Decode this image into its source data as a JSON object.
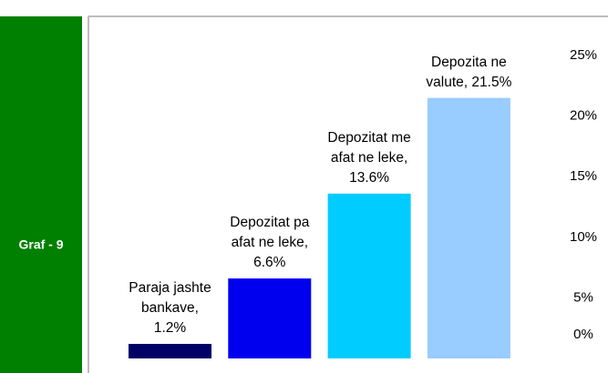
{
  "side_label": "Graf - 9",
  "chart_data": {
    "type": "bar",
    "values": [
      1.2,
      6.6,
      13.6,
      21.5
    ],
    "value_labels": [
      "Paraja jashte bankave, 1.2%",
      "Depozitat pa afat ne leke, 6.6%",
      "Depozitat me afat ne leke, 13.6%",
      "Depozita ne valute, 21.5%"
    ],
    "colors": [
      "#000066",
      "#0000ee",
      "#00ccff",
      "#99ccff"
    ],
    "ylim": [
      0,
      25
    ],
    "yticks": [
      {
        "value": 0,
        "label": "0%"
      },
      {
        "value": 5,
        "label": "5%"
      },
      {
        "value": 10,
        "label": "10%"
      },
      {
        "value": 15,
        "label": "15%"
      },
      {
        "value": 20,
        "label": "20%"
      },
      {
        "value": 25,
        "label": "25%"
      }
    ],
    "y_axis_side": "right",
    "grid": false
  }
}
